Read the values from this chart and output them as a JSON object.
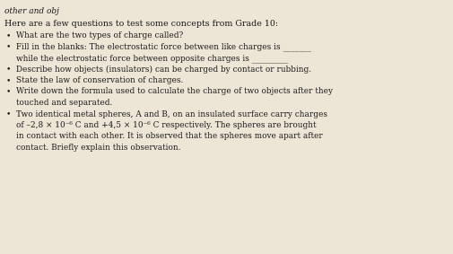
{
  "background_color": "#ede5d5",
  "header": "other and obj",
  "intro": "Here are a few questions to test some concepts from Grade 10:",
  "text_color": "#1a1a1a",
  "font_size_header": 6.5,
  "font_size_intro": 6.8,
  "font_size_bullet": 6.4,
  "bullet_char": "•",
  "lines": [
    {
      "type": "header",
      "text": "other and obj"
    },
    {
      "type": "intro",
      "text": "Here are a few questions to test some concepts from Grade 10:"
    },
    {
      "type": "bullet",
      "text": "What are the two types of charge called?"
    },
    {
      "type": "bullet",
      "text": "Fill in the blanks: The electrostatic force between like charges is _______"
    },
    {
      "type": "cont",
      "text": "while the electrostatic force between opposite charges is _________"
    },
    {
      "type": "bullet",
      "text": "Describe how objects (insulators) can be charged by contact or rubbing."
    },
    {
      "type": "bullet",
      "text": "State the law of conservation of charges."
    },
    {
      "type": "bullet",
      "text": "Write down the formula used to calculate the charge of two objects after they"
    },
    {
      "type": "cont",
      "text": "touched and separated."
    },
    {
      "type": "bullet",
      "text": "Two identical metal spheres, A and B, on an insulated surface carry charges"
    },
    {
      "type": "cont",
      "text": "of –2,8 × 10⁻⁶ C and +4,5 × 10⁻⁶ C respectively. The spheres are brought"
    },
    {
      "type": "cont",
      "text": "in contact with each other. It is observed that the spheres move apart after"
    },
    {
      "type": "cont",
      "text": "contact. Briefly explain this observation."
    }
  ]
}
